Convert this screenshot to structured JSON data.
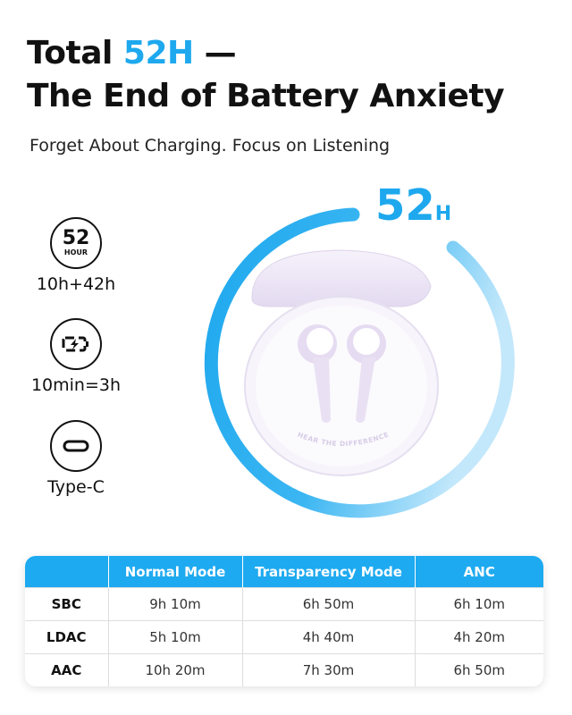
{
  "headline": {
    "line1_prefix": "Total ",
    "line1_accent": "52H",
    "line1_suffix": " —",
    "line2": "The End of Battery Anxiety"
  },
  "subtitle": "Forget About Charging. Focus on Listening",
  "colors": {
    "accent": "#1ea8ee",
    "accent_light": "#bfe6fa",
    "case": "#ece6f4"
  },
  "ring_label": {
    "value": "52",
    "unit": "H"
  },
  "features": [
    {
      "icon": "52-hour-icon",
      "icon_big": "52",
      "icon_small": "HOUR",
      "label": "10h+42h"
    },
    {
      "icon": "fast-charge-battery-icon",
      "label": "10min=3h"
    },
    {
      "icon": "usb-type-c-icon",
      "label": "Type-C"
    }
  ],
  "product_engraving": "HEAR THE DIFFERENCE",
  "table": {
    "headers": [
      "",
      "Normal Mode",
      "Transparency Mode",
      "ANC"
    ],
    "rows": [
      {
        "codec": "SBC",
        "values": [
          "9h 10m",
          "6h 50m",
          "6h 10m"
        ]
      },
      {
        "codec": "LDAC",
        "values": [
          "5h 10m",
          "4h 40m",
          "4h 20m"
        ]
      },
      {
        "codec": "AAC",
        "values": [
          "10h 20m",
          "7h 30m",
          "6h 50m"
        ]
      }
    ]
  }
}
